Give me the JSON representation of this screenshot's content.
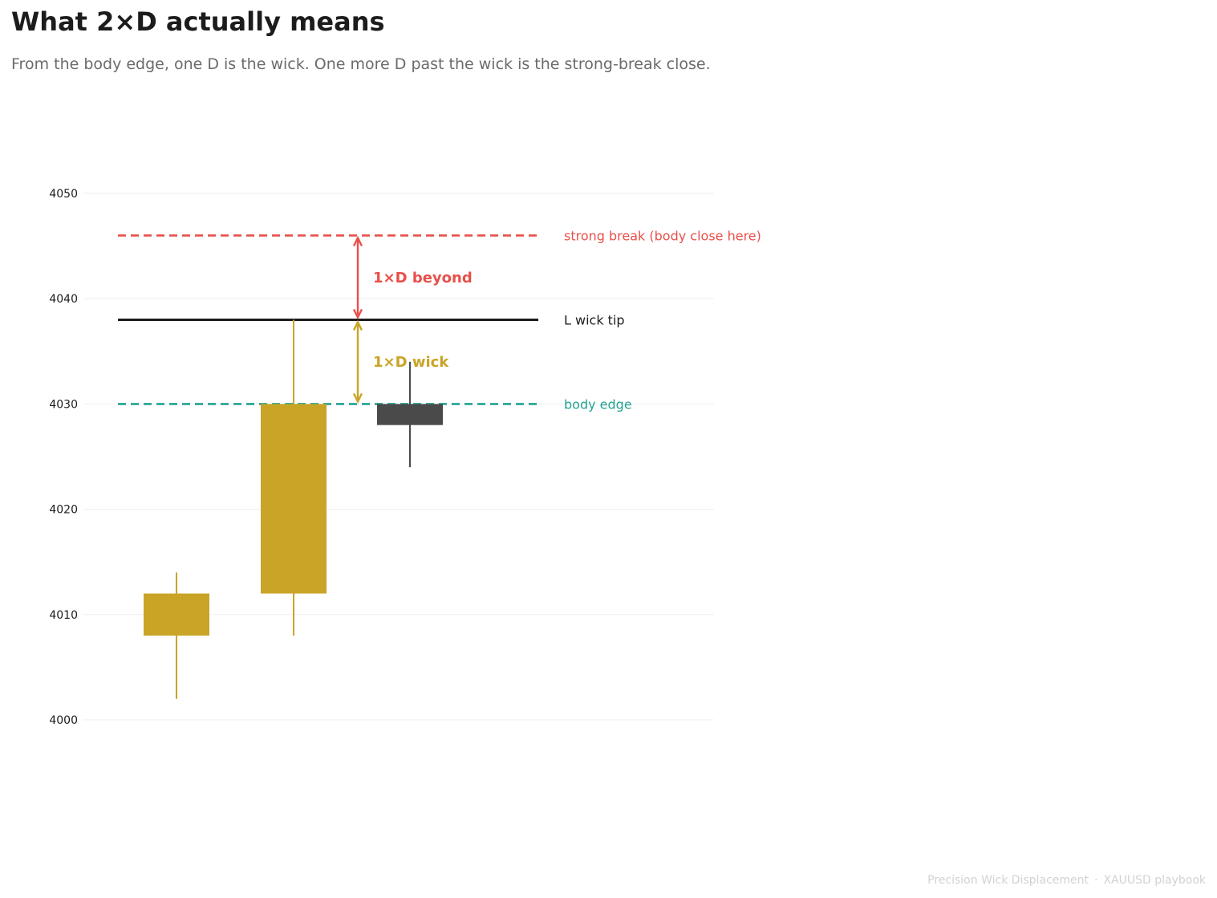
{
  "header": {
    "title": "What 2×D actually means",
    "subtitle": "From the body edge, one D is the wick. One more D past the wick is the strong-break close."
  },
  "footer": {
    "left": "Precision Wick Displacement",
    "separator": "·",
    "right": "XAUUSD playbook"
  },
  "colors": {
    "bull": "#c9a426",
    "bear": "#4a4a4a",
    "strong": "#e8504a",
    "body_edge": "#22a391",
    "wick_tip": "#1c1c1c",
    "grid": "#efefef"
  },
  "chart_data": {
    "type": "candlestick",
    "ylim": [
      3995,
      4050
    ],
    "yticks": [
      4000,
      4010,
      4020,
      4030,
      4040,
      4050
    ],
    "grid": "horizontal",
    "candles": [
      {
        "open": 4008,
        "close": 4012,
        "low": 4002,
        "high": 4014,
        "direction": "bull"
      },
      {
        "open": 4012,
        "close": 4030,
        "low": 4008,
        "high": 4038,
        "direction": "bull"
      },
      {
        "open": 4030,
        "close": 4028,
        "low": 4024,
        "high": 4034,
        "direction": "bear"
      }
    ],
    "levels": [
      {
        "id": "strong",
        "value": 4046,
        "label": "strong break  (body close here)",
        "style": "dashed",
        "color": "#e8504a"
      },
      {
        "id": "wick_tip",
        "value": 4038,
        "label": "L  wick tip",
        "style": "solid",
        "color": "#1c1c1c"
      },
      {
        "id": "body_edge",
        "value": 4030,
        "label": "body edge",
        "style": "dashed",
        "color": "#22a391"
      }
    ],
    "annotations": [
      {
        "id": "beyond",
        "from": 4038,
        "to": 4046,
        "label": "1×D  beyond",
        "color": "#e8504a"
      },
      {
        "id": "wick",
        "from": 4030,
        "to": 4038,
        "label": "1×D  wick",
        "color": "#c9a426"
      }
    ]
  }
}
